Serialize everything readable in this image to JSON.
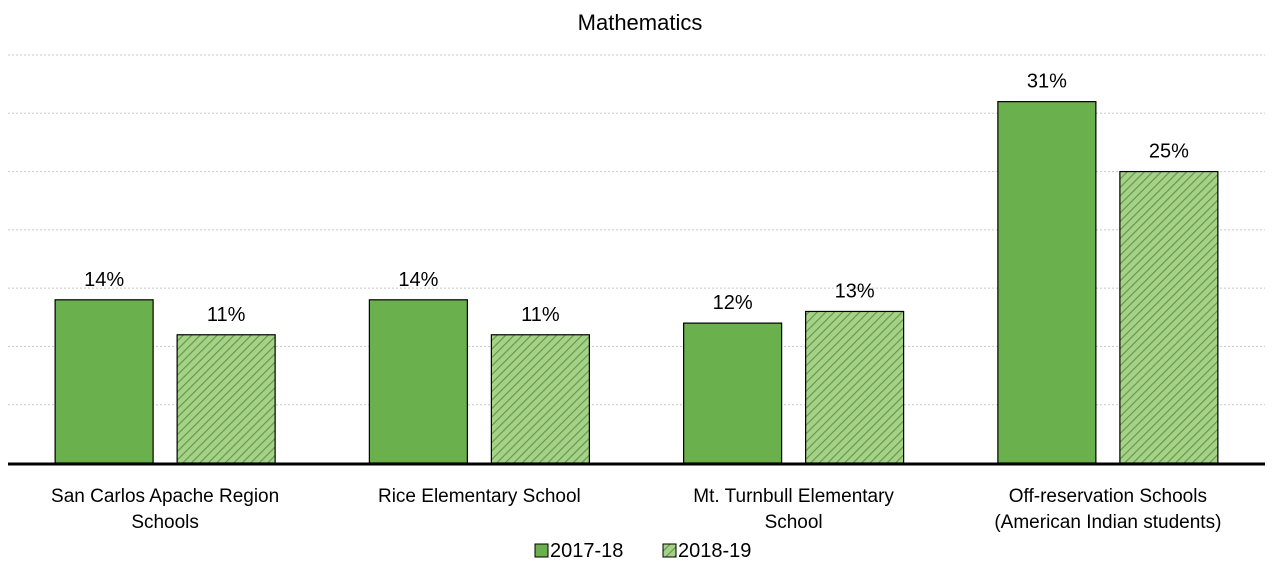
{
  "chart_data": {
    "type": "bar",
    "title": "Mathematics",
    "categories": [
      [
        "San Carlos Apache Region",
        "Schools"
      ],
      [
        "Rice Elementary School"
      ],
      [
        "Mt. Turnbull Elementary",
        "School"
      ],
      [
        "Off-reservation Schools",
        "(American Indian students)"
      ]
    ],
    "series": [
      {
        "name": "2017-18",
        "values": [
          14,
          14,
          12,
          31
        ],
        "labels": [
          "14%",
          "14%",
          "12%",
          "31%"
        ],
        "style": "solid"
      },
      {
        "name": "2018-19",
        "values": [
          11,
          11,
          13,
          25
        ],
        "labels": [
          "11%",
          "11%",
          "13%",
          "25%"
        ],
        "style": "hatched"
      }
    ],
    "value_scale": [
      13.8,
      14.1,
      11.7,
      30.6,
      11.3,
      11.1,
      13.2,
      24.9
    ],
    "ylim": [
      0,
      35
    ],
    "gridlines": true,
    "legend_position": "bottom",
    "colors": {
      "bar": "#6ab04c",
      "hatch": "#8cc16a",
      "hatch_line": "#5a9a3c",
      "outline": "#000000",
      "grid": "#c8c8c8"
    }
  }
}
